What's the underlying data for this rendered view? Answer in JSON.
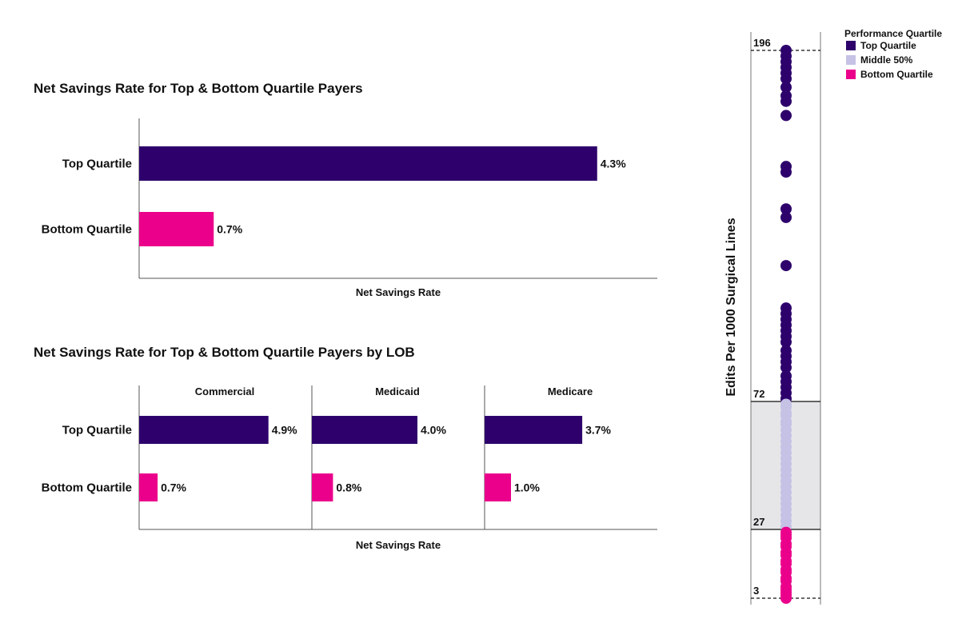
{
  "colors": {
    "top": "#2d006b",
    "middle": "#c5c2e6",
    "bottom": "#eb008b",
    "band": "#e6e6e8",
    "axis": "#555555"
  },
  "chart_data": [
    {
      "type": "bar",
      "orientation": "horizontal",
      "title": "Net Savings Rate for Top & Bottom Quartile Payers",
      "xlabel": "Net Savings Rate",
      "categories": [
        "Top Quartile",
        "Bottom Quartile"
      ],
      "values": [
        4.3,
        0.7
      ],
      "value_labels": [
        "4.3%",
        "0.7%"
      ],
      "xlim": [
        0,
        5.0
      ],
      "grid": false
    },
    {
      "type": "bar",
      "orientation": "horizontal",
      "title": "Net Savings Rate for Top & Bottom Quartile Payers by LOB",
      "xlabel": "Net Savings Rate",
      "categories": [
        "Top Quartile",
        "Bottom Quartile"
      ],
      "xlim": [
        0,
        7.0
      ],
      "panels": [
        {
          "name": "Commercial",
          "values": [
            4.9,
            0.7
          ],
          "value_labels": [
            "4.9%",
            "0.7%"
          ]
        },
        {
          "name": "Medicaid",
          "values": [
            4.0,
            0.8
          ],
          "value_labels": [
            "4.0%",
            "0.8%"
          ]
        },
        {
          "name": "Medicare",
          "values": [
            3.7,
            1.0
          ],
          "value_labels": [
            "3.7%",
            "1.0%"
          ]
        }
      ],
      "grid": false
    },
    {
      "type": "scatter",
      "subtype": "strip",
      "ylabel": "Edits Per 1000 Surgical Lines",
      "ylim": [
        3,
        196
      ],
      "reference_lines": [
        {
          "value": 196,
          "label": "196",
          "style": "dashed"
        },
        {
          "value": 72,
          "label": "72",
          "style": "solid"
        },
        {
          "value": 27,
          "label": "27",
          "style": "solid"
        },
        {
          "value": 3,
          "label": "3",
          "style": "dashed"
        }
      ],
      "legend": {
        "title": "Performance Quartile",
        "position": "top-right",
        "items": [
          "Top Quartile",
          "Middle 50%",
          "Bottom Quartile"
        ]
      },
      "series": [
        {
          "name": "Top Quartile",
          "values": [
            196,
            194,
            192,
            190,
            188,
            186,
            183,
            180,
            178,
            173,
            155,
            153,
            140,
            137,
            120,
            105,
            103,
            101,
            99,
            97,
            95,
            93,
            90,
            88,
            86,
            84,
            81,
            79,
            77,
            75,
            73
          ]
        },
        {
          "name": "Middle 50%",
          "values": [
            71,
            70,
            68,
            67,
            65,
            64,
            62,
            60,
            58,
            56,
            54,
            52,
            50,
            48,
            46,
            44,
            42,
            40,
            38,
            36,
            34,
            32,
            30,
            28
          ]
        },
        {
          "name": "Bottom Quartile",
          "values": [
            26,
            25,
            24,
            22,
            21,
            19,
            18,
            16,
            15,
            13,
            12,
            10,
            9,
            7,
            6,
            5,
            4,
            3
          ]
        }
      ]
    }
  ]
}
